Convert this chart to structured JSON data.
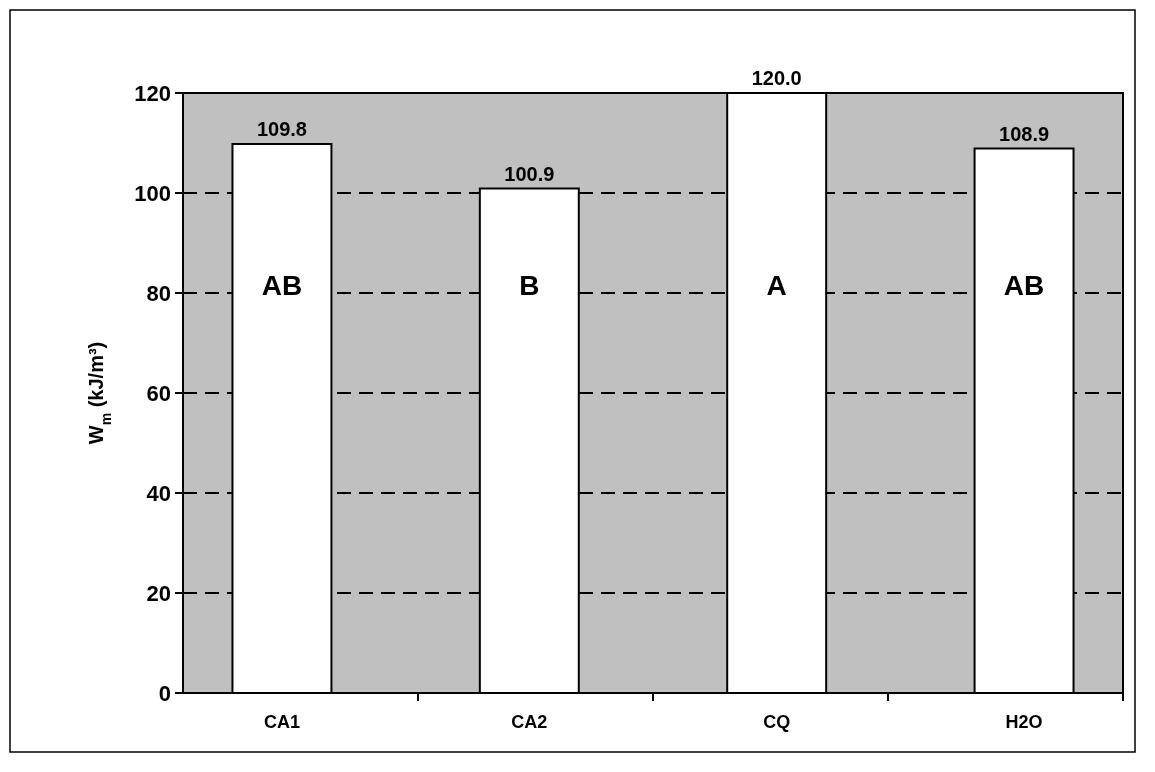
{
  "chart_data": {
    "type": "bar",
    "ylabel": "W$_{m}$ (kJ/m³)",
    "categories": [
      "CA1",
      "CA2",
      "CQ",
      "H2O"
    ],
    "values": [
      109.8,
      100.9,
      120.0,
      108.9
    ],
    "value_labels": [
      "109.8",
      "100.9",
      "120.0",
      "108.9"
    ],
    "color": "#ffffff",
    "ylim": [
      0,
      120
    ],
    "yticks": [
      0,
      20,
      40,
      60,
      80,
      100,
      120
    ],
    "grid": "y",
    "annotations": [
      "AB",
      "B",
      "A",
      "AB"
    ]
  }
}
